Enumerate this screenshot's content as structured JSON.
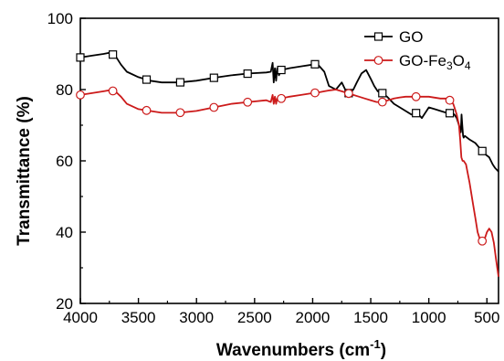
{
  "chart_data": {
    "type": "line",
    "xlabel": "Wavenumbers (cm",
    "xlabel_sup": "-1",
    "xlabel_end": ")",
    "ylabel": "Transmittance (%)",
    "xlim": [
      4000,
      400
    ],
    "ylim": [
      20,
      100
    ],
    "x_reversed": true,
    "xticks": [
      4000,
      3500,
      3000,
      2500,
      2000,
      1500,
      1000,
      500
    ],
    "xtick_labels": [
      "4000",
      "3500",
      "3000",
      "2500",
      "2000",
      "1500",
      "1000",
      "500"
    ],
    "yticks": [
      20,
      40,
      60,
      80,
      100
    ],
    "ytick_labels": [
      "20",
      "40",
      "60",
      "80",
      "100"
    ],
    "legend_placement": "top-right",
    "series": [
      {
        "name": "GO",
        "legend_label": "GO",
        "color": "#000000",
        "marker": "square",
        "x": [
          4000,
          3900,
          3800,
          3750,
          3700,
          3650,
          3600,
          3500,
          3400,
          3300,
          3150,
          3000,
          2850,
          2700,
          2550,
          2400,
          2360,
          2345,
          2335,
          2325,
          2315,
          2305,
          2290,
          2270,
          2200,
          2100,
          2000,
          1960,
          1900,
          1860,
          1800,
          1750,
          1720,
          1690,
          1650,
          1620,
          1580,
          1540,
          1500,
          1470,
          1440,
          1400,
          1360,
          1300,
          1250,
          1200,
          1150,
          1100,
          1060,
          1000,
          950,
          900,
          850,
          800,
          780,
          760,
          740,
          725,
          718,
          712,
          705,
          700,
          690,
          650,
          600,
          560,
          520,
          480,
          450,
          430,
          400
        ],
        "y": [
          89,
          89.5,
          90,
          90.3,
          89.5,
          87,
          85,
          83.5,
          82.5,
          82,
          82,
          82.5,
          83.3,
          84,
          84.5,
          84.8,
          85,
          87.5,
          82,
          86,
          82.5,
          86,
          84,
          85.5,
          86,
          86.5,
          87,
          87.2,
          85,
          81,
          80,
          82,
          80,
          79,
          80,
          82,
          84.5,
          85.5,
          83,
          81,
          79.5,
          79,
          78,
          76,
          75,
          74,
          73,
          73.5,
          72,
          75,
          74.5,
          74,
          73.5,
          73.3,
          73,
          72,
          70,
          68,
          73,
          70,
          67,
          66.5,
          67,
          66,
          65,
          63.5,
          62,
          61,
          59,
          58,
          57
        ]
      },
      {
        "name": "GO-Fe3O4",
        "legend_label": "GO-Fe",
        "legend_sub1": "3",
        "legend_mid": "O",
        "legend_sub2": "4",
        "color": "#cc1a1a",
        "marker": "circle",
        "x": [
          4000,
          3900,
          3800,
          3750,
          3700,
          3650,
          3600,
          3500,
          3400,
          3300,
          3150,
          3000,
          2850,
          2700,
          2550,
          2400,
          2360,
          2345,
          2335,
          2325,
          2315,
          2305,
          2290,
          2270,
          2200,
          2100,
          2000,
          1950,
          1900,
          1850,
          1800,
          1750,
          1700,
          1650,
          1600,
          1550,
          1500,
          1450,
          1400,
          1350,
          1300,
          1250,
          1200,
          1150,
          1100,
          1000,
          900,
          850,
          820,
          790,
          780,
          760,
          740,
          730,
          720,
          710,
          700,
          680,
          650,
          620,
          600,
          580,
          560,
          540,
          520,
          500,
          480,
          460,
          440,
          420,
          400
        ],
        "y": [
          78.5,
          79,
          79.5,
          79.8,
          79.5,
          78,
          76,
          74.5,
          74,
          73.5,
          73.5,
          74,
          75,
          76,
          76.5,
          77,
          76.5,
          78.5,
          76,
          78,
          76,
          77.5,
          77,
          77.5,
          78,
          78.5,
          79,
          79.2,
          79.5,
          79.8,
          80,
          79.5,
          79,
          78.5,
          78,
          77.5,
          77,
          76.5,
          76.5,
          77,
          77.5,
          77.8,
          78,
          78,
          78,
          78,
          77.5,
          77.5,
          77,
          76,
          75,
          73,
          70,
          66,
          61,
          60,
          60,
          59,
          54,
          48,
          44,
          40,
          38,
          37.5,
          38,
          40,
          41,
          40,
          37,
          32,
          27.5
        ]
      }
    ]
  }
}
